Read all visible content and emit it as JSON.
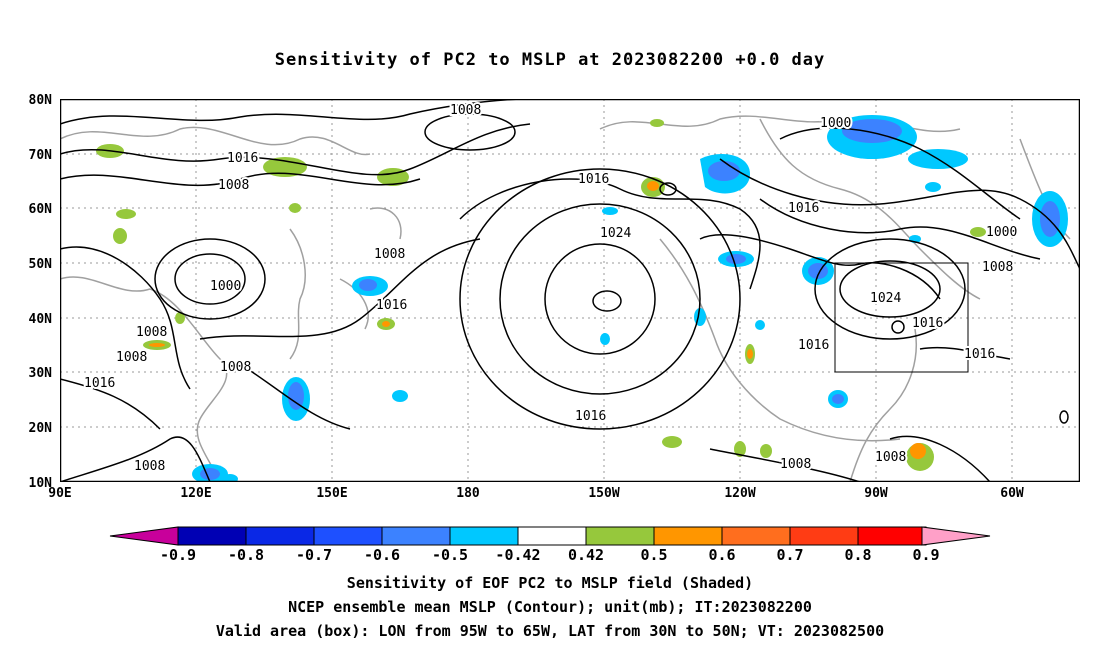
{
  "title": "Sensitivity of PC2 to MSLP at 2023082200 +0.0 day",
  "map": {
    "lat_ticks": [
      "80N",
      "70N",
      "60N",
      "50N",
      "40N",
      "30N",
      "20N",
      "10N"
    ],
    "lon_ticks": [
      "90E",
      "120E",
      "150E",
      "180",
      "150W",
      "120W",
      "90W",
      "60W"
    ],
    "valid_box": {
      "lon": [
        "95W",
        "65W"
      ],
      "lat": [
        "30N",
        "50N"
      ]
    },
    "contour_labels": [
      "1008",
      "1016",
      "1008",
      "1000",
      "1008",
      "1008",
      "1008",
      "1016",
      "1008",
      "1016",
      "1008",
      "1024",
      "1016",
      "1016",
      "1000",
      "1016",
      "1000",
      "1008",
      "1024",
      "1016",
      "1016",
      "1016",
      "1008",
      "1008"
    ]
  },
  "colorbar": {
    "labels": [
      "-0.9",
      "-0.8",
      "-0.7",
      "-0.6",
      "-0.5",
      "-0.42",
      "0.42",
      "0.5",
      "0.6",
      "0.7",
      "0.8",
      "0.9"
    ],
    "colors": [
      "#0000b4",
      "#0a28e6",
      "#1e50ff",
      "#3c82ff",
      "#00c8ff",
      "#ffffff",
      "#96c83c",
      "#ff9600",
      "#ff6e1e",
      "#ff3c14",
      "#ff0000"
    ],
    "end_low": "#c8009b",
    "end_high": "#ffa0c8"
  },
  "captions": {
    "line1": "Sensitivity of EOF PC2 to MSLP field (Shaded)",
    "line2": "NCEP ensemble mean MSLP (Contour); unit(mb); IT:2023082200",
    "line3": "Valid area (box): LON from 95W to 65W, LAT from 30N to 50N; VT: 2023082500"
  }
}
